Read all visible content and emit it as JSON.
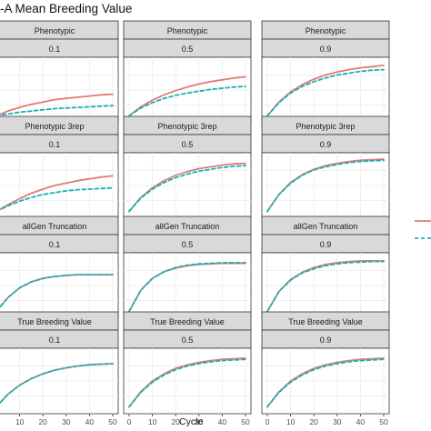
{
  "title": "-A Mean Breeding Value",
  "xlabel": "Cycle",
  "colors": {
    "series_a": "#E07B75",
    "series_b": "#17B2B5",
    "strip_fill": "#D9D9D9",
    "strip_border": "#333333",
    "grid": "#EBEBEB"
  },
  "chart_data": {
    "type": "line",
    "xlabel": "Cycle",
    "x_ticks": [
      0,
      10,
      20,
      30,
      40,
      50
    ],
    "xlim": [
      0,
      50
    ],
    "grid": true,
    "legend_position": "right",
    "rows": [
      "Phenotypic",
      "Phenotypic 3rep",
      "allGen Truncation",
      "True Breeding Value"
    ],
    "cols": [
      "0.1",
      "0.5",
      "0.9"
    ],
    "panels": [
      {
        "row": "Phenotypic",
        "col": "0.1",
        "series": [
          {
            "style": "solid",
            "x": [
              0,
              5,
              10,
              15,
              20,
              25,
              30,
              35,
              40,
              45,
              50
            ],
            "y": [
              0.07,
              0.15,
              0.21,
              0.26,
              0.3,
              0.34,
              0.36,
              0.38,
              0.4,
              0.42,
              0.43
            ]
          },
          {
            "style": "dashed",
            "x": [
              0,
              5,
              10,
              15,
              20,
              25,
              30,
              35,
              40,
              45,
              50
            ],
            "y": [
              0.07,
              0.1,
              0.13,
              0.15,
              0.17,
              0.19,
              0.2,
              0.21,
              0.22,
              0.23,
              0.24
            ]
          }
        ]
      },
      {
        "row": "Phenotypic",
        "col": "0.5",
        "series": [
          {
            "style": "solid",
            "x": [
              0,
              5,
              10,
              15,
              20,
              25,
              30,
              35,
              40,
              45,
              50
            ],
            "y": [
              0.07,
              0.22,
              0.33,
              0.42,
              0.49,
              0.55,
              0.6,
              0.64,
              0.67,
              0.7,
              0.72
            ]
          },
          {
            "style": "dashed",
            "x": [
              0,
              5,
              10,
              15,
              20,
              25,
              30,
              35,
              40,
              45,
              50
            ],
            "y": [
              0.07,
              0.2,
              0.29,
              0.36,
              0.41,
              0.45,
              0.48,
              0.51,
              0.53,
              0.55,
              0.56
            ]
          }
        ]
      },
      {
        "row": "Phenotypic",
        "col": "0.9",
        "series": [
          {
            "style": "solid",
            "x": [
              0,
              5,
              10,
              15,
              20,
              25,
              30,
              35,
              40,
              45,
              50
            ],
            "y": [
              0.07,
              0.3,
              0.47,
              0.59,
              0.68,
              0.75,
              0.8,
              0.84,
              0.87,
              0.89,
              0.91
            ]
          },
          {
            "style": "dashed",
            "x": [
              0,
              5,
              10,
              15,
              20,
              25,
              30,
              35,
              40,
              45,
              50
            ],
            "y": [
              0.07,
              0.29,
              0.45,
              0.56,
              0.64,
              0.7,
              0.75,
              0.78,
              0.81,
              0.83,
              0.84
            ]
          }
        ]
      },
      {
        "row": "Phenotypic 3rep",
        "col": "0.1",
        "series": [
          {
            "style": "solid",
            "x": [
              0,
              5,
              10,
              15,
              20,
              25,
              30,
              35,
              40,
              45,
              50
            ],
            "y": [
              0.07,
              0.18,
              0.28,
              0.37,
              0.44,
              0.5,
              0.54,
              0.58,
              0.61,
              0.64,
              0.66
            ]
          },
          {
            "style": "dashed",
            "x": [
              0,
              5,
              10,
              15,
              20,
              25,
              30,
              35,
              40,
              45,
              50
            ],
            "y": [
              0.07,
              0.16,
              0.24,
              0.3,
              0.35,
              0.38,
              0.41,
              0.43,
              0.44,
              0.45,
              0.46
            ]
          }
        ]
      },
      {
        "row": "Phenotypic 3rep",
        "col": "0.5",
        "series": [
          {
            "style": "solid",
            "x": [
              0,
              5,
              10,
              15,
              20,
              25,
              30,
              35,
              40,
              45,
              50
            ],
            "y": [
              0.07,
              0.3,
              0.46,
              0.58,
              0.67,
              0.73,
              0.78,
              0.81,
              0.84,
              0.86,
              0.87
            ]
          },
          {
            "style": "dashed",
            "x": [
              0,
              5,
              10,
              15,
              20,
              25,
              30,
              35,
              40,
              45,
              50
            ],
            "y": [
              0.07,
              0.29,
              0.44,
              0.55,
              0.63,
              0.69,
              0.74,
              0.77,
              0.8,
              0.82,
              0.83
            ]
          }
        ]
      },
      {
        "row": "Phenotypic 3rep",
        "col": "0.9",
        "series": [
          {
            "style": "solid",
            "x": [
              0,
              5,
              10,
              15,
              20,
              25,
              30,
              35,
              40,
              45,
              50
            ],
            "y": [
              0.07,
              0.35,
              0.55,
              0.68,
              0.77,
              0.83,
              0.87,
              0.9,
              0.92,
              0.93,
              0.94
            ]
          },
          {
            "style": "dashed",
            "x": [
              0,
              5,
              10,
              15,
              20,
              25,
              30,
              35,
              40,
              45,
              50
            ],
            "y": [
              0.07,
              0.35,
              0.54,
              0.67,
              0.76,
              0.81,
              0.85,
              0.88,
              0.9,
              0.91,
              0.92
            ]
          }
        ]
      },
      {
        "row": "allGen Truncation",
        "col": "0.1",
        "series": [
          {
            "style": "solid",
            "x": [
              0,
              5,
              10,
              15,
              20,
              25,
              30,
              35,
              40,
              45,
              50
            ],
            "y": [
              0.07,
              0.3,
              0.46,
              0.56,
              0.62,
              0.65,
              0.67,
              0.68,
              0.68,
              0.68,
              0.68
            ]
          },
          {
            "style": "dashed",
            "x": [
              0,
              5,
              10,
              15,
              20,
              25,
              30,
              35,
              40,
              45,
              50
            ],
            "y": [
              0.07,
              0.3,
              0.46,
              0.56,
              0.62,
              0.65,
              0.67,
              0.68,
              0.68,
              0.68,
              0.68
            ]
          }
        ]
      },
      {
        "row": "allGen Truncation",
        "col": "0.5",
        "series": [
          {
            "style": "solid",
            "x": [
              0,
              5,
              10,
              15,
              20,
              25,
              30,
              35,
              40,
              45,
              50
            ],
            "y": [
              0.07,
              0.42,
              0.62,
              0.73,
              0.79,
              0.83,
              0.85,
              0.86,
              0.87,
              0.87,
              0.87
            ]
          },
          {
            "style": "dashed",
            "x": [
              0,
              5,
              10,
              15,
              20,
              25,
              30,
              35,
              40,
              45,
              50
            ],
            "y": [
              0.07,
              0.42,
              0.62,
              0.73,
              0.8,
              0.84,
              0.86,
              0.87,
              0.88,
              0.88,
              0.88
            ]
          }
        ]
      },
      {
        "row": "allGen Truncation",
        "col": "0.9",
        "series": [
          {
            "style": "solid",
            "x": [
              0,
              5,
              10,
              15,
              20,
              25,
              30,
              35,
              40,
              45,
              50
            ],
            "y": [
              0.07,
              0.4,
              0.6,
              0.72,
              0.8,
              0.85,
              0.88,
              0.9,
              0.91,
              0.91,
              0.91
            ]
          },
          {
            "style": "dashed",
            "x": [
              0,
              5,
              10,
              15,
              20,
              25,
              30,
              35,
              40,
              45,
              50
            ],
            "y": [
              0.07,
              0.4,
              0.59,
              0.71,
              0.78,
              0.83,
              0.86,
              0.88,
              0.89,
              0.9,
              0.9
            ]
          }
        ]
      },
      {
        "row": "True Breeding Value",
        "col": "0.1",
        "series": [
          {
            "style": "solid",
            "x": [
              0,
              5,
              10,
              15,
              20,
              25,
              30,
              35,
              40,
              45,
              50
            ],
            "y": [
              0.07,
              0.28,
              0.43,
              0.54,
              0.62,
              0.68,
              0.72,
              0.75,
              0.77,
              0.78,
              0.79
            ]
          },
          {
            "style": "dashed",
            "x": [
              0,
              5,
              10,
              15,
              20,
              25,
              30,
              35,
              40,
              45,
              50
            ],
            "y": [
              0.07,
              0.28,
              0.43,
              0.54,
              0.62,
              0.68,
              0.72,
              0.75,
              0.77,
              0.78,
              0.79
            ]
          }
        ]
      },
      {
        "row": "True Breeding Value",
        "col": "0.5",
        "series": [
          {
            "style": "solid",
            "x": [
              0,
              5,
              10,
              15,
              20,
              25,
              30,
              35,
              40,
              45,
              50
            ],
            "y": [
              0.07,
              0.32,
              0.5,
              0.62,
              0.71,
              0.77,
              0.81,
              0.84,
              0.86,
              0.87,
              0.88
            ]
          },
          {
            "style": "dashed",
            "x": [
              0,
              5,
              10,
              15,
              20,
              25,
              30,
              35,
              40,
              45,
              50
            ],
            "y": [
              0.07,
              0.31,
              0.48,
              0.6,
              0.69,
              0.75,
              0.79,
              0.82,
              0.84,
              0.85,
              0.86
            ]
          }
        ]
      },
      {
        "row": "True Breeding Value",
        "col": "0.9",
        "series": [
          {
            "style": "solid",
            "x": [
              0,
              5,
              10,
              15,
              20,
              25,
              30,
              35,
              40,
              45,
              50
            ],
            "y": [
              0.07,
              0.32,
              0.5,
              0.62,
              0.71,
              0.77,
              0.81,
              0.84,
              0.86,
              0.87,
              0.88
            ]
          },
          {
            "style": "dashed",
            "x": [
              0,
              5,
              10,
              15,
              20,
              25,
              30,
              35,
              40,
              45,
              50
            ],
            "y": [
              0.07,
              0.31,
              0.48,
              0.6,
              0.69,
              0.75,
              0.79,
              0.82,
              0.84,
              0.85,
              0.86
            ]
          }
        ]
      }
    ]
  }
}
